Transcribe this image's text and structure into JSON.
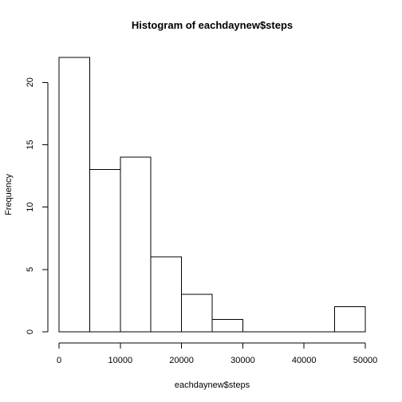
{
  "chart_data": {
    "type": "bar",
    "title": "Histogram of eachdaynew$steps",
    "xlabel": "eachdaynew$steps",
    "ylabel": "Frequency",
    "bins": [
      {
        "from": 0,
        "to": 5000,
        "count": 22
      },
      {
        "from": 5000,
        "to": 10000,
        "count": 13
      },
      {
        "from": 10000,
        "to": 15000,
        "count": 14
      },
      {
        "from": 15000,
        "to": 20000,
        "count": 6
      },
      {
        "from": 20000,
        "to": 25000,
        "count": 3
      },
      {
        "from": 25000,
        "to": 30000,
        "count": 1
      },
      {
        "from": 30000,
        "to": 35000,
        "count": 0
      },
      {
        "from": 35000,
        "to": 40000,
        "count": 0
      },
      {
        "from": 40000,
        "to": 45000,
        "count": 0
      },
      {
        "from": 45000,
        "to": 50000,
        "count": 2
      }
    ],
    "xlim": [
      0,
      50000
    ],
    "ylim": [
      0,
      22
    ],
    "x_ticks": [
      0,
      10000,
      20000,
      30000,
      40000,
      50000
    ],
    "x_tick_labels": [
      "0",
      "10000",
      "20000",
      "30000",
      "40000",
      "50000"
    ],
    "y_ticks": [
      0,
      5,
      10,
      15,
      20
    ],
    "y_tick_labels": [
      "0",
      "5",
      "10",
      "15",
      "20"
    ],
    "grid": false,
    "colors": {
      "bar_fill": "#ffffff",
      "bar_stroke": "#000000"
    }
  }
}
